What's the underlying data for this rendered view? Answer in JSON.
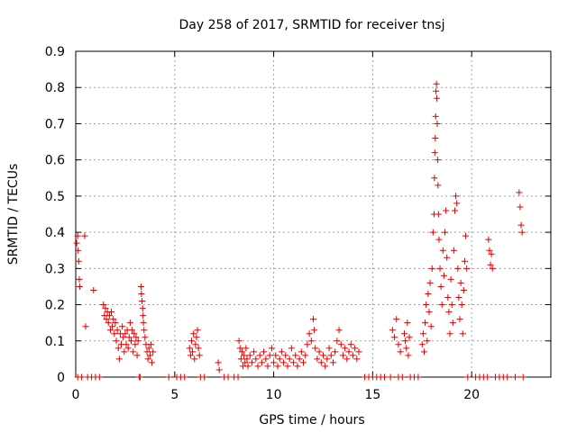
{
  "chart_data": {
    "type": "scatter",
    "title": "Day 258 of 2017, SRMTID for receiver tnsj",
    "xlabel": "GPS time / hours",
    "ylabel": "SRMTID / TECUs",
    "xlim": [
      0,
      24
    ],
    "ylim": [
      0,
      0.9
    ],
    "xticks": [
      0,
      5,
      10,
      15,
      20
    ],
    "yticks": [
      0,
      0.1,
      0.2,
      0.3,
      0.4,
      0.5,
      0.6,
      0.7,
      0.8,
      0.9
    ],
    "xtick_labels": [
      "0",
      "5",
      "10",
      "15",
      "20"
    ],
    "ytick_labels": [
      "0",
      "0.1",
      "0.2",
      "0.3",
      "0.4",
      "0.5",
      "0.6",
      "0.7",
      "0.8",
      "0.9"
    ],
    "grid": true,
    "marker": "+",
    "marker_color": "#e00000",
    "series": [
      {
        "name": "SRMTID",
        "points": [
          [
            0.05,
            0.37
          ],
          [
            0.1,
            0.39
          ],
          [
            0.12,
            0.35
          ],
          [
            0.15,
            0.32
          ],
          [
            0.18,
            0.27
          ],
          [
            0.2,
            0.25
          ],
          [
            0.45,
            0.39
          ],
          [
            0.5,
            0.14
          ],
          [
            0.9,
            0.24
          ],
          [
            1.4,
            0.2
          ],
          [
            1.45,
            0.17
          ],
          [
            1.5,
            0.19
          ],
          [
            1.55,
            0.16
          ],
          [
            1.6,
            0.18
          ],
          [
            1.65,
            0.15
          ],
          [
            1.7,
            0.17
          ],
          [
            1.75,
            0.13
          ],
          [
            1.8,
            0.18
          ],
          [
            1.85,
            0.14
          ],
          [
            1.9,
            0.16
          ],
          [
            1.95,
            0.12
          ],
          [
            2.0,
            0.15
          ],
          [
            2.05,
            0.1
          ],
          [
            2.1,
            0.13
          ],
          [
            2.15,
            0.08
          ],
          [
            2.2,
            0.05
          ],
          [
            2.25,
            0.12
          ],
          [
            2.3,
            0.09
          ],
          [
            2.35,
            0.14
          ],
          [
            2.4,
            0.11
          ],
          [
            2.45,
            0.07
          ],
          [
            2.5,
            0.12
          ],
          [
            2.55,
            0.09
          ],
          [
            2.6,
            0.13
          ],
          [
            2.65,
            0.08
          ],
          [
            2.7,
            0.11
          ],
          [
            2.75,
            0.15
          ],
          [
            2.8,
            0.1
          ],
          [
            2.85,
            0.13
          ],
          [
            2.9,
            0.07
          ],
          [
            2.95,
            0.12
          ],
          [
            3.0,
            0.09
          ],
          [
            3.05,
            0.11
          ],
          [
            3.1,
            0.06
          ],
          [
            3.15,
            0.1
          ],
          [
            3.3,
            0.25
          ],
          [
            3.32,
            0.23
          ],
          [
            3.35,
            0.21
          ],
          [
            3.38,
            0.19
          ],
          [
            3.4,
            0.17
          ],
          [
            3.42,
            0.15
          ],
          [
            3.45,
            0.13
          ],
          [
            3.5,
            0.11
          ],
          [
            3.55,
            0.09
          ],
          [
            3.6,
            0.07
          ],
          [
            3.65,
            0.05
          ],
          [
            3.7,
            0.08
          ],
          [
            3.75,
            0.06
          ],
          [
            3.8,
            0.09
          ],
          [
            3.85,
            0.04
          ],
          [
            3.9,
            0.07
          ],
          [
            5.75,
            0.08
          ],
          [
            5.8,
            0.06
          ],
          [
            5.85,
            0.1
          ],
          [
            5.9,
            0.07
          ],
          [
            5.95,
            0.12
          ],
          [
            6.0,
            0.05
          ],
          [
            6.05,
            0.09
          ],
          [
            6.1,
            0.11
          ],
          [
            6.15,
            0.13
          ],
          [
            6.2,
            0.08
          ],
          [
            6.25,
            0.06
          ],
          [
            7.2,
            0.04
          ],
          [
            7.25,
            0.02
          ],
          [
            8.25,
            0.1
          ],
          [
            8.3,
            0.08
          ],
          [
            8.35,
            0.05
          ],
          [
            8.4,
            0.07
          ],
          [
            8.45,
            0.03
          ],
          [
            8.5,
            0.06
          ],
          [
            8.55,
            0.04
          ],
          [
            8.6,
            0.08
          ],
          [
            8.65,
            0.05
          ],
          [
            8.7,
            0.03
          ],
          [
            8.8,
            0.06
          ],
          [
            8.9,
            0.04
          ],
          [
            9.0,
            0.07
          ],
          [
            9.1,
            0.05
          ],
          [
            9.2,
            0.03
          ],
          [
            9.3,
            0.06
          ],
          [
            9.4,
            0.04
          ],
          [
            9.5,
            0.07
          ],
          [
            9.6,
            0.05
          ],
          [
            9.7,
            0.03
          ],
          [
            9.8,
            0.06
          ],
          [
            9.9,
            0.08
          ],
          [
            10.0,
            0.04
          ],
          [
            10.1,
            0.06
          ],
          [
            10.2,
            0.03
          ],
          [
            10.3,
            0.05
          ],
          [
            10.4,
            0.07
          ],
          [
            10.5,
            0.04
          ],
          [
            10.6,
            0.06
          ],
          [
            10.7,
            0.03
          ],
          [
            10.8,
            0.05
          ],
          [
            10.9,
            0.08
          ],
          [
            11.0,
            0.04
          ],
          [
            11.1,
            0.06
          ],
          [
            11.2,
            0.03
          ],
          [
            11.3,
            0.05
          ],
          [
            11.4,
            0.07
          ],
          [
            11.5,
            0.04
          ],
          [
            11.6,
            0.06
          ],
          [
            11.7,
            0.09
          ],
          [
            11.8,
            0.12
          ],
          [
            11.9,
            0.1
          ],
          [
            12.0,
            0.16
          ],
          [
            12.05,
            0.13
          ],
          [
            12.1,
            0.08
          ],
          [
            12.2,
            0.05
          ],
          [
            12.3,
            0.07
          ],
          [
            12.4,
            0.04
          ],
          [
            12.5,
            0.06
          ],
          [
            12.6,
            0.03
          ],
          [
            12.7,
            0.05
          ],
          [
            12.8,
            0.08
          ],
          [
            12.9,
            0.06
          ],
          [
            13.0,
            0.04
          ],
          [
            13.1,
            0.07
          ],
          [
            13.2,
            0.1
          ],
          [
            13.3,
            0.13
          ],
          [
            13.4,
            0.09
          ],
          [
            13.5,
            0.06
          ],
          [
            13.6,
            0.08
          ],
          [
            13.7,
            0.05
          ],
          [
            13.8,
            0.07
          ],
          [
            13.9,
            0.09
          ],
          [
            14.0,
            0.06
          ],
          [
            14.1,
            0.08
          ],
          [
            14.2,
            0.05
          ],
          [
            14.3,
            0.07
          ],
          [
            16.0,
            0.13
          ],
          [
            16.1,
            0.11
          ],
          [
            16.2,
            0.16
          ],
          [
            16.3,
            0.09
          ],
          [
            16.4,
            0.07
          ],
          [
            16.6,
            0.12
          ],
          [
            16.65,
            0.1
          ],
          [
            16.7,
            0.08
          ],
          [
            16.75,
            0.15
          ],
          [
            16.8,
            0.06
          ],
          [
            16.85,
            0.11
          ],
          [
            17.5,
            0.09
          ],
          [
            17.55,
            0.12
          ],
          [
            17.6,
            0.07
          ],
          [
            17.65,
            0.15
          ],
          [
            17.7,
            0.2
          ],
          [
            17.75,
            0.1
          ],
          [
            17.8,
            0.23
          ],
          [
            17.85,
            0.18
          ],
          [
            17.9,
            0.26
          ],
          [
            17.95,
            0.14
          ],
          [
            18.0,
            0.3
          ],
          [
            18.05,
            0.4
          ],
          [
            18.1,
            0.45
          ],
          [
            18.12,
            0.55
          ],
          [
            18.14,
            0.62
          ],
          [
            18.16,
            0.66
          ],
          [
            18.18,
            0.72
          ],
          [
            18.2,
            0.79
          ],
          [
            18.22,
            0.81
          ],
          [
            18.24,
            0.77
          ],
          [
            18.26,
            0.7
          ],
          [
            18.28,
            0.6
          ],
          [
            18.3,
            0.53
          ],
          [
            18.32,
            0.45
          ],
          [
            18.35,
            0.38
          ],
          [
            18.4,
            0.3
          ],
          [
            18.45,
            0.25
          ],
          [
            18.5,
            0.2
          ],
          [
            18.55,
            0.35
          ],
          [
            18.6,
            0.28
          ],
          [
            18.65,
            0.4
          ],
          [
            18.7,
            0.46
          ],
          [
            18.75,
            0.33
          ],
          [
            18.8,
            0.22
          ],
          [
            18.85,
            0.18
          ],
          [
            18.9,
            0.12
          ],
          [
            18.95,
            0.27
          ],
          [
            19.0,
            0.2
          ],
          [
            19.05,
            0.15
          ],
          [
            19.1,
            0.35
          ],
          [
            19.15,
            0.46
          ],
          [
            19.2,
            0.5
          ],
          [
            19.25,
            0.48
          ],
          [
            19.3,
            0.3
          ],
          [
            19.35,
            0.22
          ],
          [
            19.4,
            0.16
          ],
          [
            19.45,
            0.26
          ],
          [
            19.5,
            0.2
          ],
          [
            19.55,
            0.12
          ],
          [
            19.6,
            0.24
          ],
          [
            19.65,
            0.32
          ],
          [
            19.7,
            0.39
          ],
          [
            19.75,
            0.3
          ],
          [
            20.85,
            0.38
          ],
          [
            20.9,
            0.35
          ],
          [
            20.95,
            0.31
          ],
          [
            21.0,
            0.34
          ],
          [
            21.05,
            0.3
          ],
          [
            22.4,
            0.51
          ],
          [
            22.45,
            0.47
          ],
          [
            22.5,
            0.42
          ],
          [
            22.55,
            0.4
          ],
          [
            0.1,
            0
          ],
          [
            0.3,
            0
          ],
          [
            0.6,
            0
          ],
          [
            0.8,
            0
          ],
          [
            1.0,
            0
          ],
          [
            1.2,
            0
          ],
          [
            3.2,
            0
          ],
          [
            3.25,
            0
          ],
          [
            4.7,
            0
          ],
          [
            5.1,
            0
          ],
          [
            5.3,
            0
          ],
          [
            5.5,
            0
          ],
          [
            6.3,
            0
          ],
          [
            6.5,
            0
          ],
          [
            7.5,
            0
          ],
          [
            7.7,
            0
          ],
          [
            8.0,
            0
          ],
          [
            8.2,
            0
          ],
          [
            14.6,
            0
          ],
          [
            14.8,
            0
          ],
          [
            15.0,
            0
          ],
          [
            15.2,
            0
          ],
          [
            15.4,
            0
          ],
          [
            15.6,
            0
          ],
          [
            15.9,
            0
          ],
          [
            16.3,
            0
          ],
          [
            16.5,
            0
          ],
          [
            16.9,
            0
          ],
          [
            17.1,
            0
          ],
          [
            17.3,
            0
          ],
          [
            19.8,
            0
          ],
          [
            20.2,
            0
          ],
          [
            20.4,
            0
          ],
          [
            20.6,
            0
          ],
          [
            20.8,
            0
          ],
          [
            21.2,
            0
          ],
          [
            21.4,
            0
          ],
          [
            21.6,
            0
          ],
          [
            21.8,
            0
          ],
          [
            22.2,
            0
          ],
          [
            22.6,
            0
          ]
        ]
      }
    ]
  }
}
